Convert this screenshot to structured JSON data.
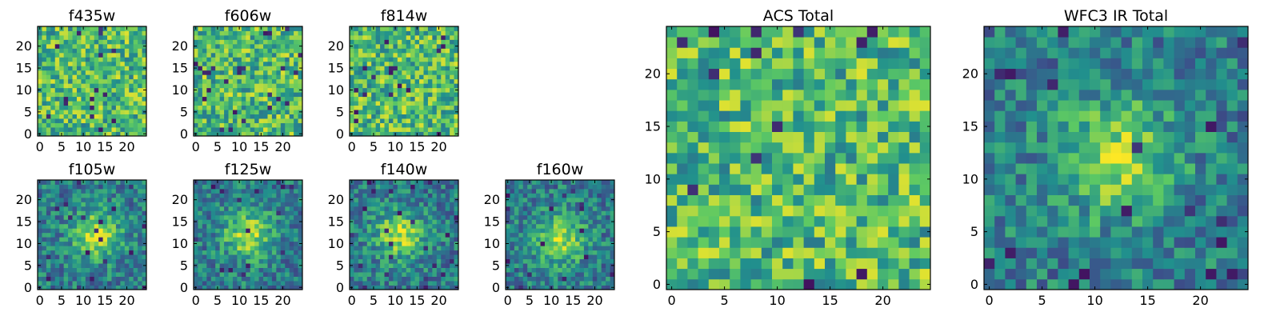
{
  "chart_data": [
    {
      "id": "f435w",
      "title": "f435w",
      "type": "heatmap",
      "grid_size": 25,
      "x_ticks": [
        "0",
        "5",
        "10",
        "15",
        "20"
      ],
      "y_ticks": [
        "0",
        "5",
        "10",
        "15",
        "20"
      ],
      "xlim": [
        0,
        24
      ],
      "ylim": [
        0,
        24
      ],
      "pattern": "noise",
      "seed": 11
    },
    {
      "id": "f606w",
      "title": "f606w",
      "type": "heatmap",
      "grid_size": 25,
      "x_ticks": [
        "0",
        "5",
        "10",
        "15",
        "20"
      ],
      "y_ticks": [
        "0",
        "5",
        "10",
        "15",
        "20"
      ],
      "xlim": [
        0,
        24
      ],
      "ylim": [
        0,
        24
      ],
      "pattern": "noise",
      "seed": 23
    },
    {
      "id": "f814w",
      "title": "f814w",
      "type": "heatmap",
      "grid_size": 25,
      "x_ticks": [
        "0",
        "5",
        "10",
        "15",
        "20"
      ],
      "y_ticks": [
        "0",
        "5",
        "10",
        "15",
        "20"
      ],
      "xlim": [
        0,
        24
      ],
      "ylim": [
        0,
        24
      ],
      "pattern": "noise",
      "seed": 37
    },
    {
      "id": "f105w",
      "title": "f105w",
      "type": "heatmap",
      "grid_size": 25,
      "x_ticks": [
        "0",
        "5",
        "10",
        "15",
        "20"
      ],
      "y_ticks": [
        "0",
        "5",
        "10",
        "15",
        "20"
      ],
      "xlim": [
        0,
        24
      ],
      "ylim": [
        0,
        24
      ],
      "pattern": "source",
      "center": [
        13,
        12
      ],
      "seed": 41
    },
    {
      "id": "f125w",
      "title": "f125w",
      "type": "heatmap",
      "grid_size": 25,
      "x_ticks": [
        "0",
        "5",
        "10",
        "15",
        "20"
      ],
      "y_ticks": [
        "0",
        "5",
        "10",
        "15",
        "20"
      ],
      "xlim": [
        0,
        24
      ],
      "ylim": [
        0,
        24
      ],
      "pattern": "source",
      "center": [
        12,
        12
      ],
      "seed": 53
    },
    {
      "id": "f140w",
      "title": "f140w",
      "type": "heatmap",
      "grid_size": 25,
      "x_ticks": [
        "0",
        "5",
        "10",
        "15",
        "20"
      ],
      "y_ticks": [
        "0",
        "5",
        "10",
        "15",
        "20"
      ],
      "xlim": [
        0,
        24
      ],
      "ylim": [
        0,
        24
      ],
      "pattern": "source",
      "center": [
        11,
        12
      ],
      "seed": 67
    },
    {
      "id": "f160w",
      "title": "f160w",
      "type": "heatmap",
      "grid_size": 25,
      "x_ticks": [
        "0",
        "5",
        "10",
        "15",
        "20"
      ],
      "y_ticks": [
        "0",
        "5",
        "10",
        "15",
        "20"
      ],
      "xlim": [
        0,
        24
      ],
      "ylim": [
        0,
        24
      ],
      "pattern": "source",
      "center": [
        12,
        11
      ],
      "seed": 79
    },
    {
      "id": "acs_total",
      "title": "ACS Total",
      "type": "heatmap",
      "grid_size": 25,
      "x_ticks": [
        "0",
        "5",
        "10",
        "15",
        "20"
      ],
      "y_ticks": [
        "0",
        "5",
        "10",
        "15",
        "20"
      ],
      "xlim": [
        0,
        24
      ],
      "ylim": [
        0,
        24
      ],
      "pattern": "noise",
      "seed": 97
    },
    {
      "id": "wfc3_ir_total",
      "title": "WFC3 IR Total",
      "type": "heatmap",
      "grid_size": 25,
      "x_ticks": [
        "0",
        "5",
        "10",
        "15",
        "20"
      ],
      "y_ticks": [
        "0",
        "5",
        "10",
        "15",
        "20"
      ],
      "xlim": [
        0,
        24
      ],
      "ylim": [
        0,
        24
      ],
      "pattern": "source",
      "center": [
        12,
        12
      ],
      "seed": 113
    }
  ],
  "colormap": [
    "#440154",
    "#3b528b",
    "#21908d",
    "#5dc963",
    "#fde725"
  ]
}
